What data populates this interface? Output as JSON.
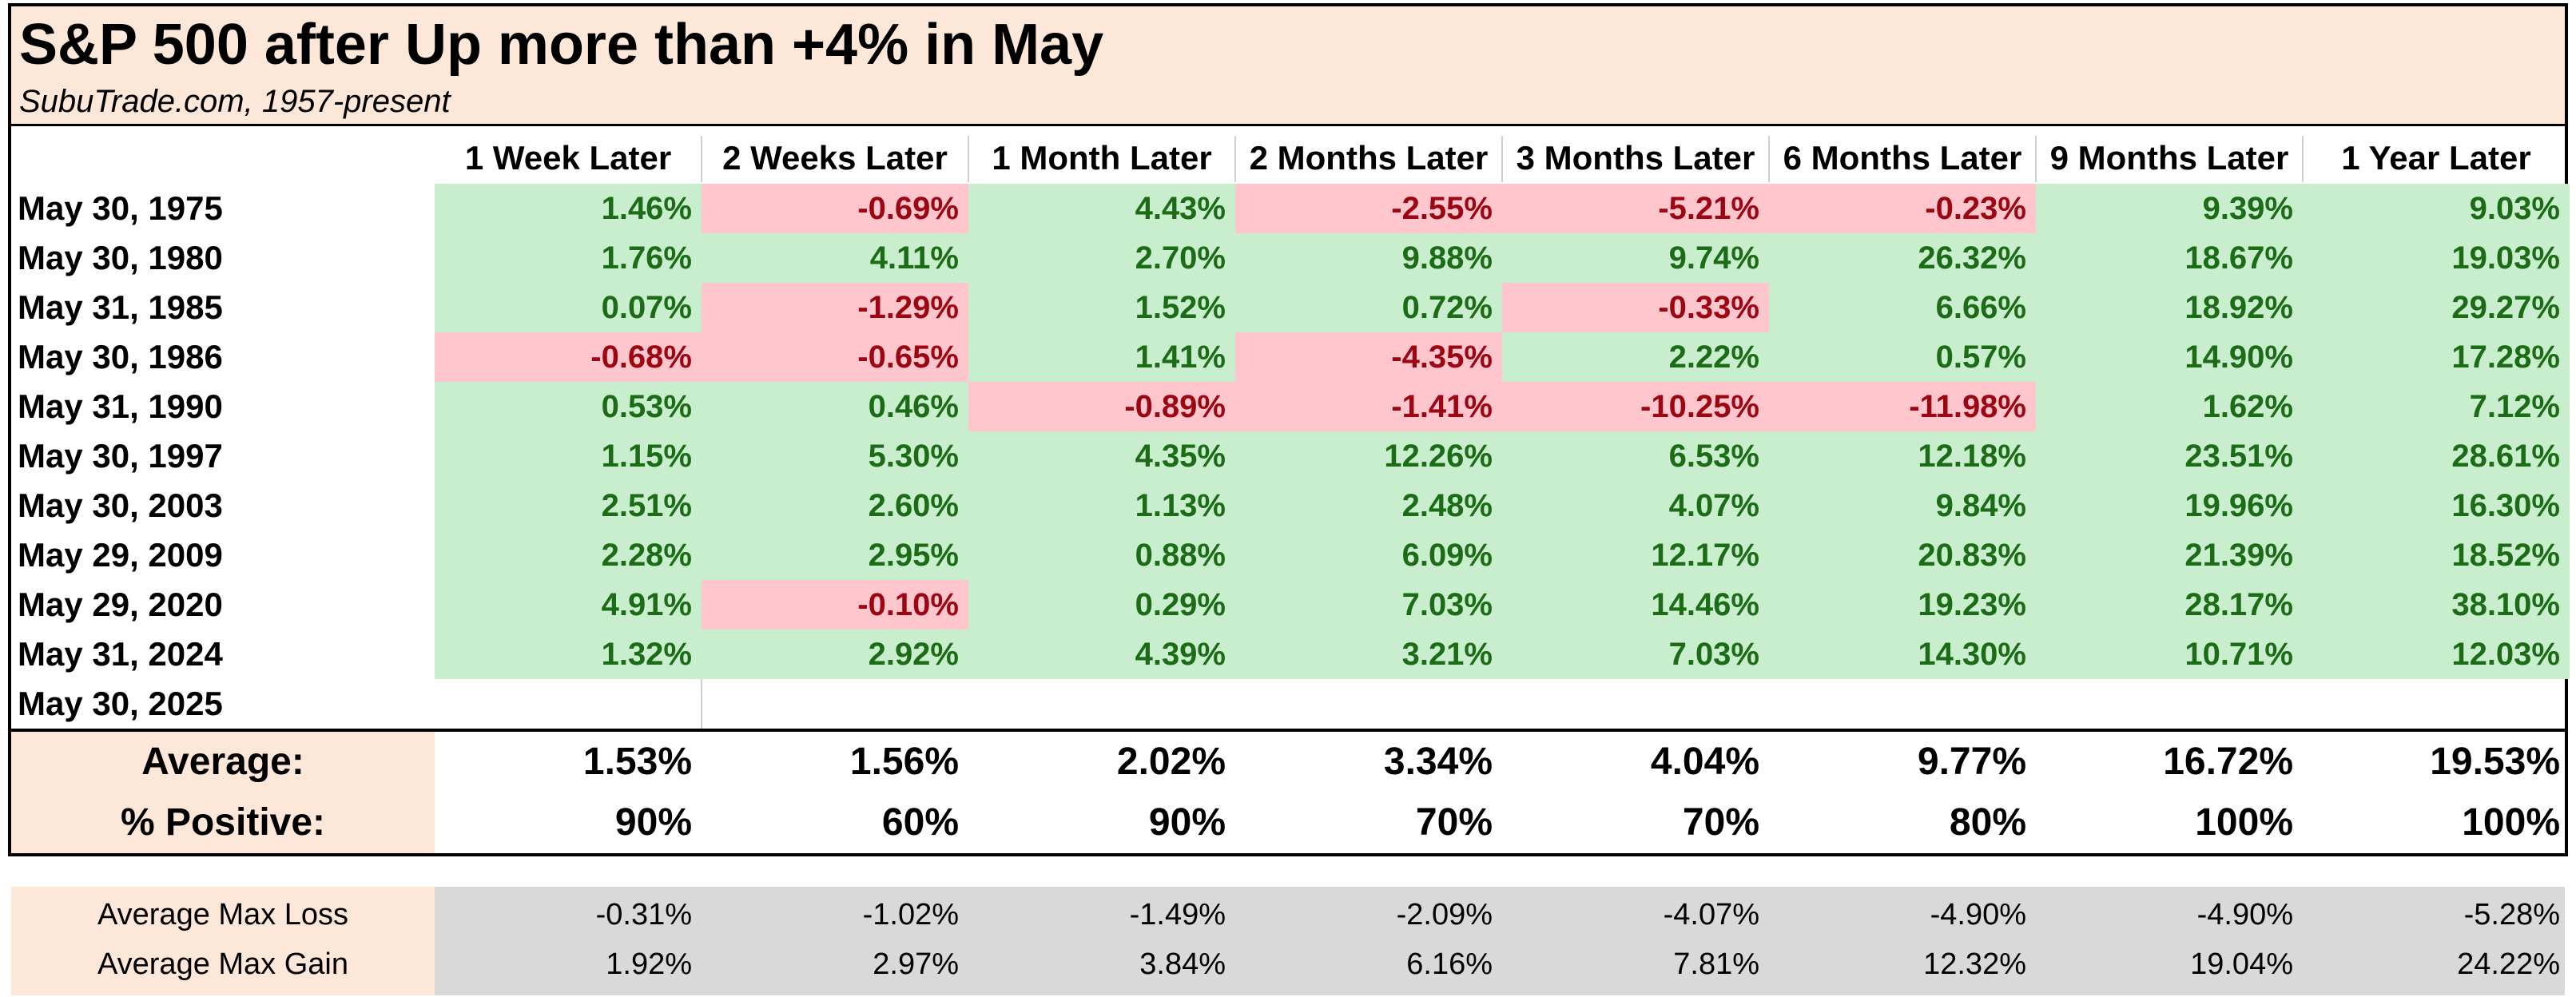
{
  "title": "S&P 500 after Up more than +4% in May",
  "subtitle": "SubuTrade.com, 1957-present",
  "columns": [
    "1 Week Later",
    "2 Weeks Later",
    "1 Month Later",
    "2 Months Later",
    "3 Months Later",
    "6 Months Later",
    "9 Months Later",
    "1 Year Later"
  ],
  "colors": {
    "positive_bg": "#c8eecd",
    "positive_text": "#1c6b17",
    "negative_bg": "#ffc7cd",
    "negative_text": "#9c0613",
    "header_bg": "#fde7d9",
    "stats_bg": "#d9d9d9"
  },
  "chart_data": {
    "type": "table",
    "rows": [
      {
        "date": "May 30, 1975",
        "values": [
          "1.46%",
          "-0.69%",
          "4.43%",
          "-2.55%",
          "-5.21%",
          "-0.23%",
          "9.39%",
          "9.03%"
        ]
      },
      {
        "date": "May 30, 1980",
        "values": [
          "1.76%",
          "4.11%",
          "2.70%",
          "9.88%",
          "9.74%",
          "26.32%",
          "18.67%",
          "19.03%"
        ]
      },
      {
        "date": "May 31, 1985",
        "values": [
          "0.07%",
          "-1.29%",
          "1.52%",
          "0.72%",
          "-0.33%",
          "6.66%",
          "18.92%",
          "29.27%"
        ]
      },
      {
        "date": "May 30, 1986",
        "values": [
          "-0.68%",
          "-0.65%",
          "1.41%",
          "-4.35%",
          "2.22%",
          "0.57%",
          "14.90%",
          "17.28%"
        ]
      },
      {
        "date": "May 31, 1990",
        "values": [
          "0.53%",
          "0.46%",
          "-0.89%",
          "-1.41%",
          "-10.25%",
          "-11.98%",
          "1.62%",
          "7.12%"
        ]
      },
      {
        "date": "May 30, 1997",
        "values": [
          "1.15%",
          "5.30%",
          "4.35%",
          "12.26%",
          "6.53%",
          "12.18%",
          "23.51%",
          "28.61%"
        ]
      },
      {
        "date": "May 30, 2003",
        "values": [
          "2.51%",
          "2.60%",
          "1.13%",
          "2.48%",
          "4.07%",
          "9.84%",
          "19.96%",
          "16.30%"
        ]
      },
      {
        "date": "May 29, 2009",
        "values": [
          "2.28%",
          "2.95%",
          "0.88%",
          "6.09%",
          "12.17%",
          "20.83%",
          "21.39%",
          "18.52%"
        ]
      },
      {
        "date": "May 29, 2020",
        "values": [
          "4.91%",
          "-0.10%",
          "0.29%",
          "7.03%",
          "14.46%",
          "19.23%",
          "28.17%",
          "38.10%"
        ]
      },
      {
        "date": "May 31, 2024",
        "values": [
          "1.32%",
          "2.92%",
          "4.39%",
          "3.21%",
          "7.03%",
          "14.30%",
          "10.71%",
          "12.03%"
        ]
      },
      {
        "date": "May 30, 2025",
        "values": []
      }
    ],
    "summary": [
      {
        "label": "Average:",
        "values": [
          "1.53%",
          "1.56%",
          "2.02%",
          "3.34%",
          "4.04%",
          "9.77%",
          "16.72%",
          "19.53%"
        ]
      },
      {
        "label": "% Positive:",
        "values": [
          "90%",
          "60%",
          "90%",
          "70%",
          "70%",
          "80%",
          "100%",
          "100%"
        ]
      }
    ],
    "stats": [
      {
        "label": "Average Max Loss",
        "values": [
          "-0.31%",
          "-1.02%",
          "-1.49%",
          "-2.09%",
          "-4.07%",
          "-4.90%",
          "-4.90%",
          "-5.28%"
        ]
      },
      {
        "label": "Average Max Gain",
        "values": [
          "1.92%",
          "2.97%",
          "3.84%",
          "6.16%",
          "7.81%",
          "12.32%",
          "19.04%",
          "24.22%"
        ]
      }
    ]
  }
}
